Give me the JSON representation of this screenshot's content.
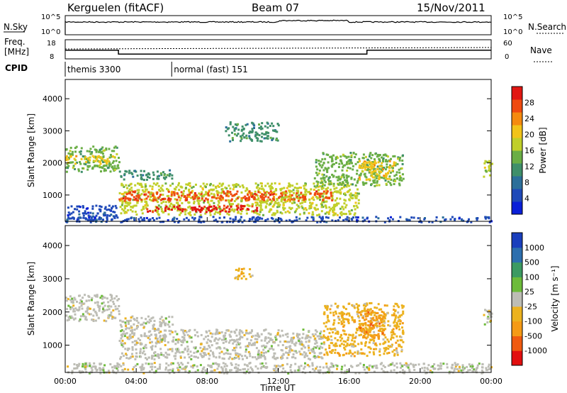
{
  "header": {
    "station": "Kerguelen (fitACF)",
    "beam": "Beam 07",
    "date": "15/Nov/2011"
  },
  "status_rows": {
    "nsky_label": "N.Sky",
    "nsearch_label": "N.Search",
    "freq_label_line1": "Freq.",
    "freq_label_line2": "[MHz]",
    "nave_label": "Nave",
    "cpid_label": "CPID",
    "nsky_ticks": [
      "10^5",
      "10^0"
    ],
    "freq_ticks": [
      "18",
      "8"
    ],
    "nave_ticks": [
      "60",
      "0"
    ],
    "cpid_segments": [
      {
        "start_hour": 0,
        "label": "themis 3300"
      },
      {
        "start_hour": 6,
        "label": "normal (fast) 151"
      }
    ],
    "freq_steps": [
      {
        "start_hour": 0,
        "end_hour": 3,
        "mhz": 12.5
      },
      {
        "start_hour": 3,
        "end_hour": 17,
        "mhz": 10.5
      },
      {
        "start_hour": 17,
        "end_hour": 24,
        "mhz": 12.5
      }
    ]
  },
  "chart_data": [
    {
      "type": "heatmap",
      "title": "",
      "xlabel": "Time UT",
      "ylabel": "Slant Range [km]",
      "xlim": [
        0,
        24
      ],
      "ylim": [
        180,
        4600
      ],
      "x_ticks": [
        "00:00",
        "04:00",
        "08:00",
        "12:00",
        "16:00",
        "20:00",
        "00:00"
      ],
      "y_ticks": [
        "1000",
        "2000",
        "3000",
        "4000"
      ],
      "colorbar": {
        "label": "Power [dB]",
        "ticks": [
          "28",
          "24",
          "20",
          "16",
          "12",
          "8",
          "4"
        ],
        "range": [
          0,
          30
        ],
        "colors": [
          "#0a1fd8",
          "#1f49b8",
          "#2c6f9a",
          "#3f8f6a",
          "#6aae45",
          "#c0cf2a",
          "#f2c319",
          "#f58a0f",
          "#ef4a10",
          "#e11712"
        ]
      },
      "regions": [
        {
          "t0": 0,
          "t1": 3,
          "r0": 1750,
          "r1": 2550,
          "level": 12
        },
        {
          "t0": 0,
          "t1": 2.8,
          "r0": 2000,
          "r1": 2250,
          "level": 18
        },
        {
          "t0": 0,
          "t1": 3,
          "r0": 250,
          "r1": 700,
          "level": 5
        },
        {
          "t0": 3,
          "t1": 16.5,
          "r0": 400,
          "r1": 1400,
          "level": 16
        },
        {
          "t0": 3,
          "t1": 15,
          "r0": 850,
          "r1": 1150,
          "level": 24
        },
        {
          "t0": 4.5,
          "t1": 11,
          "r0": 500,
          "r1": 700,
          "level": 29
        },
        {
          "t0": 3,
          "t1": 6,
          "r0": 1500,
          "r1": 1800,
          "level": 10
        },
        {
          "t0": 14,
          "t1": 19,
          "r0": 1300,
          "r1": 2350,
          "level": 14
        },
        {
          "t0": 16.5,
          "t1": 18.5,
          "r0": 1500,
          "r1": 2100,
          "level": 20
        },
        {
          "t0": 9,
          "t1": 12,
          "r0": 2700,
          "r1": 3300,
          "level": 11
        },
        {
          "t0": 23.5,
          "t1": 24,
          "r0": 1600,
          "r1": 2100,
          "level": 15
        },
        {
          "t0": 0,
          "t1": 24,
          "r0": 180,
          "r1": 350,
          "level": 5
        }
      ]
    },
    {
      "type": "heatmap",
      "title": "",
      "xlabel": "Time UT",
      "ylabel": "Slant Range [km]",
      "xlim": [
        0,
        24
      ],
      "ylim": [
        180,
        4600
      ],
      "x_ticks": [
        "00:00",
        "04:00",
        "08:00",
        "12:00",
        "16:00",
        "20:00",
        "00:00"
      ],
      "y_ticks": [
        "1000",
        "2000",
        "3000",
        "4000"
      ],
      "colorbar": {
        "label": "Velocity [m s⁻¹]",
        "ticks": [
          "1000",
          "500",
          "100",
          "25",
          "-25",
          "-100",
          "-500",
          "-1000"
        ],
        "range": [
          -1000,
          1000
        ],
        "colors": [
          "#e20f0f",
          "#f05a10",
          "#f59a16",
          "#ecb21f",
          "#bdbdb5",
          "#6dbb3a",
          "#3c9a62",
          "#2d6fae",
          "#1a3fbd"
        ]
      },
      "regions": [
        {
          "t0": 0,
          "t1": 3,
          "r0": 1750,
          "r1": 2550,
          "velocity": 0
        },
        {
          "t0": 3,
          "t1": 14.5,
          "r0": 600,
          "r1": 1500,
          "velocity": 0
        },
        {
          "t0": 3,
          "t1": 6,
          "r0": 1500,
          "r1": 1900,
          "velocity": 0
        },
        {
          "t0": 14.5,
          "t1": 19,
          "r0": 700,
          "r1": 2300,
          "velocity": -200
        },
        {
          "t0": 16.5,
          "t1": 18,
          "r0": 1200,
          "r1": 2100,
          "velocity": -400
        },
        {
          "t0": 9.5,
          "t1": 10.5,
          "r0": 3000,
          "r1": 3350,
          "velocity": -150
        },
        {
          "t0": 23.5,
          "t1": 24,
          "r0": 1600,
          "r1": 2100,
          "velocity": 60
        },
        {
          "t0": 0,
          "t1": 24,
          "r0": 180,
          "r1": 500,
          "velocity": -30
        }
      ]
    }
  ]
}
